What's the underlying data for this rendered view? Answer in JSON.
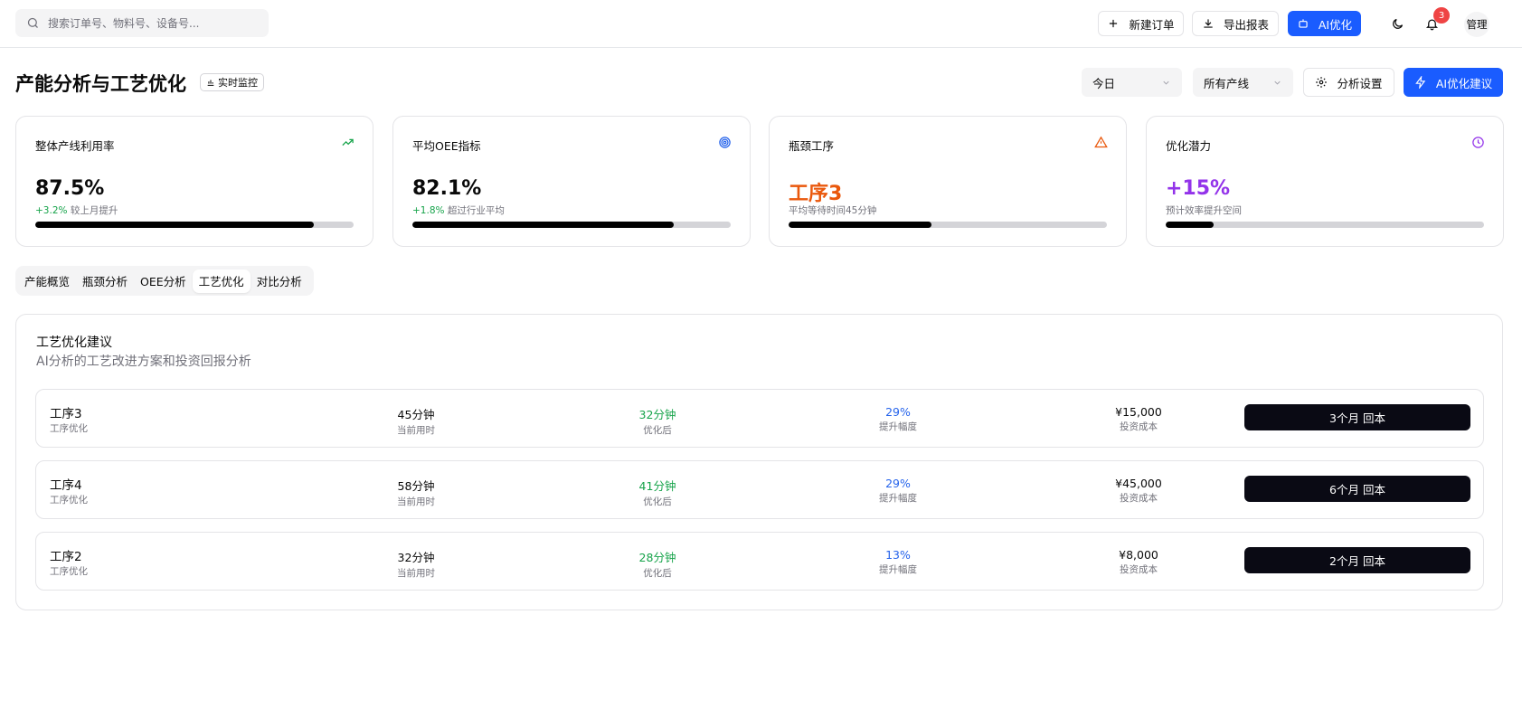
{
  "topbar": {
    "search_placeholder": "搜索订单号、物料号、设备号...",
    "new_order": "新建订单",
    "export_report": "导出报表",
    "ai_optimize": "AI优化",
    "notification_count": "3",
    "user": "管理"
  },
  "header": {
    "title": "产能分析与工艺优化",
    "badge": "实时监控",
    "period_select": "今日",
    "line_select": "所有产线",
    "settings_button": "分析设置",
    "ai_suggest_button": "AI优化建议"
  },
  "cards": [
    {
      "label": "整体产线利用率",
      "value": "87.5%",
      "change": "+3.2%",
      "note": "较上月提升",
      "progress": 0.875,
      "icon": "trending-up-icon",
      "color": "#16a34a"
    },
    {
      "label": "平均OEE指标",
      "value": "82.1%",
      "change": "+1.8%",
      "note": "超过行业平均",
      "progress": 0.821,
      "icon": "target-icon",
      "color": "#2563eb"
    },
    {
      "label": "瓶颈工序",
      "value": "工序3",
      "change": "",
      "note": "平均等待时间45分钟",
      "progress": 0.45,
      "icon": "warning-icon",
      "color": "#ea580c"
    },
    {
      "label": "优化潜力",
      "value": "+15%",
      "change": "",
      "note": "预计效率提升空间",
      "progress": 0.15,
      "icon": "clock-icon",
      "color": "#9333ea"
    }
  ],
  "tabs": [
    {
      "label": "产能概览",
      "active": false
    },
    {
      "label": "瓶颈分析",
      "active": false
    },
    {
      "label": "OEE分析",
      "active": false
    },
    {
      "label": "工艺优化",
      "active": true
    },
    {
      "label": "对比分析",
      "active": false
    }
  ],
  "panel": {
    "title": "工艺优化建议",
    "description": "AI分析的工艺改进方案和投资回报分析",
    "labels": {
      "current": "当前用时",
      "optimized": "优化后",
      "improvement": "提升幅度",
      "cost": "投资成本"
    },
    "rows": [
      {
        "name": "工序3",
        "type": "工序优化",
        "current": "45分钟",
        "optimized": "32分钟",
        "improvement": "29%",
        "cost": "¥15,000",
        "payback": "3个月 回本"
      },
      {
        "name": "工序4",
        "type": "工序优化",
        "current": "58分钟",
        "optimized": "41分钟",
        "improvement": "29%",
        "cost": "¥45,000",
        "payback": "6个月 回本"
      },
      {
        "name": "工序2",
        "type": "工序优化",
        "current": "32分钟",
        "optimized": "28分钟",
        "improvement": "13%",
        "cost": "¥8,000",
        "payback": "2个月 回本"
      }
    ]
  }
}
